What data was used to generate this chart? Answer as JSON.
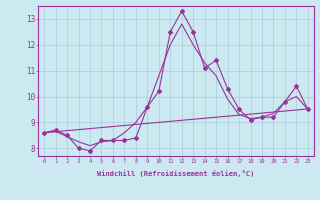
{
  "x": [
    0,
    1,
    2,
    3,
    4,
    5,
    6,
    7,
    8,
    9,
    10,
    11,
    12,
    13,
    14,
    15,
    16,
    17,
    18,
    19,
    20,
    21,
    22,
    23
  ],
  "y_main": [
    8.6,
    8.7,
    8.5,
    8.0,
    7.9,
    8.3,
    8.3,
    8.3,
    8.4,
    9.6,
    10.2,
    12.5,
    13.3,
    12.5,
    11.1,
    11.4,
    10.3,
    9.5,
    9.1,
    9.2,
    9.2,
    9.8,
    10.4,
    9.5
  ],
  "y_smooth": [
    8.6,
    8.65,
    8.45,
    8.25,
    8.1,
    8.25,
    8.3,
    8.6,
    9.0,
    9.6,
    10.8,
    12.0,
    12.8,
    12.0,
    11.3,
    10.8,
    9.9,
    9.3,
    9.15,
    9.2,
    9.35,
    9.8,
    10.0,
    9.5
  ],
  "y_linear": [
    8.6,
    8.64,
    8.68,
    8.72,
    8.76,
    8.8,
    8.84,
    8.88,
    8.92,
    8.96,
    9.0,
    9.04,
    9.08,
    9.12,
    9.16,
    9.2,
    9.24,
    9.28,
    9.32,
    9.36,
    9.4,
    9.44,
    9.48,
    9.52
  ],
  "line_color": "#993399",
  "bg_color": "#cce8f0",
  "grid_color": "#aaccdd",
  "xlabel": "Windchill (Refroidissement éolien,°C)",
  "ylim": [
    7.7,
    13.5
  ],
  "xlim": [
    -0.5,
    23.5
  ],
  "yticks": [
    8,
    9,
    10,
    11,
    12,
    13
  ],
  "xticks": [
    0,
    1,
    2,
    3,
    4,
    5,
    6,
    7,
    8,
    9,
    10,
    11,
    12,
    13,
    14,
    15,
    16,
    17,
    18,
    19,
    20,
    21,
    22,
    23
  ]
}
